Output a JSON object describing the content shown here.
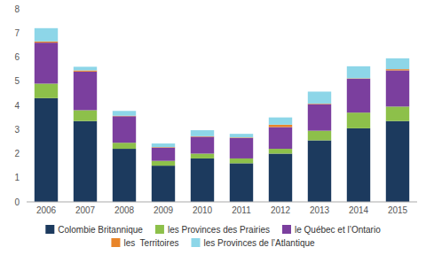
{
  "chart_data": {
    "type": "bar",
    "stacked": true,
    "grid": false,
    "legend": "bottom",
    "categories": [
      "2006",
      "2007",
      "2008",
      "2009",
      "2010",
      "2011",
      "2012",
      "2013",
      "2014",
      "2015"
    ],
    "series": [
      {
        "name": "Colombie Britannique",
        "color": "#1c3a5e",
        "values": [
          4.3,
          3.35,
          2.2,
          1.5,
          1.8,
          1.6,
          2.0,
          2.55,
          3.05,
          3.35
        ]
      },
      {
        "name": "les Provinces des Prairies",
        "color": "#8dc04a",
        "values": [
          0.6,
          0.45,
          0.25,
          0.2,
          0.2,
          0.2,
          0.2,
          0.4,
          0.65,
          0.6
        ]
      },
      {
        "name": "le Québec et l’Ontario",
        "color": "#7b3f9e",
        "values": [
          1.7,
          1.6,
          1.1,
          0.55,
          0.7,
          0.85,
          0.9,
          1.1,
          1.4,
          1.5
        ]
      },
      {
        "name": "les  Territoires",
        "color": "#e8852a",
        "values": [
          0.05,
          0.05,
          0.02,
          0.02,
          0.02,
          0.02,
          0.1,
          0.02,
          0.02,
          0.05
        ]
      },
      {
        "name": "les Provinces de l’Atlantique",
        "color": "#8dd6e8",
        "values": [
          0.55,
          0.15,
          0.2,
          0.15,
          0.25,
          0.15,
          0.3,
          0.5,
          0.5,
          0.45
        ]
      }
    ],
    "ylim": [
      0,
      8
    ],
    "yticks": [
      0,
      1,
      2,
      3,
      4,
      5,
      6,
      7,
      8
    ]
  }
}
